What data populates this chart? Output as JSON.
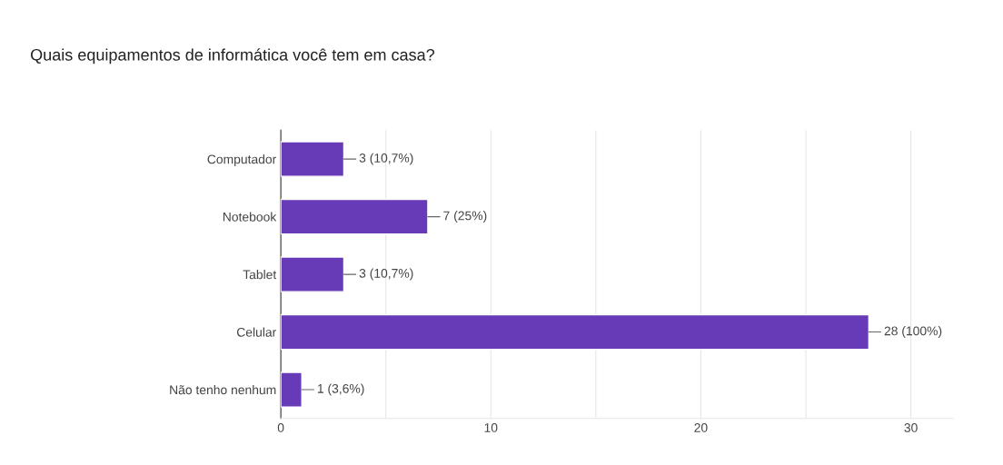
{
  "chart_data": {
    "type": "bar",
    "orientation": "horizontal",
    "title": "Quais equipamentos de informática você tem em casa?",
    "categories": [
      "Computador",
      "Notebook",
      "Tablet",
      "Celular",
      "Não tenho nenhum"
    ],
    "values": [
      3,
      7,
      3,
      28,
      1
    ],
    "value_labels": [
      "3 (10,7%)",
      "7 (25%)",
      "3 (10,7%)",
      "28 (100%)",
      "1 (3,6%)"
    ],
    "color": "#673ab7",
    "xlim": [
      0,
      32
    ],
    "xticks": [
      0,
      {
        "value": 5,
        "label": null
      },
      10,
      {
        "value": 15,
        "label": null
      },
      20,
      {
        "value": 25,
        "label": null
      },
      30
    ],
    "grid": "x"
  }
}
